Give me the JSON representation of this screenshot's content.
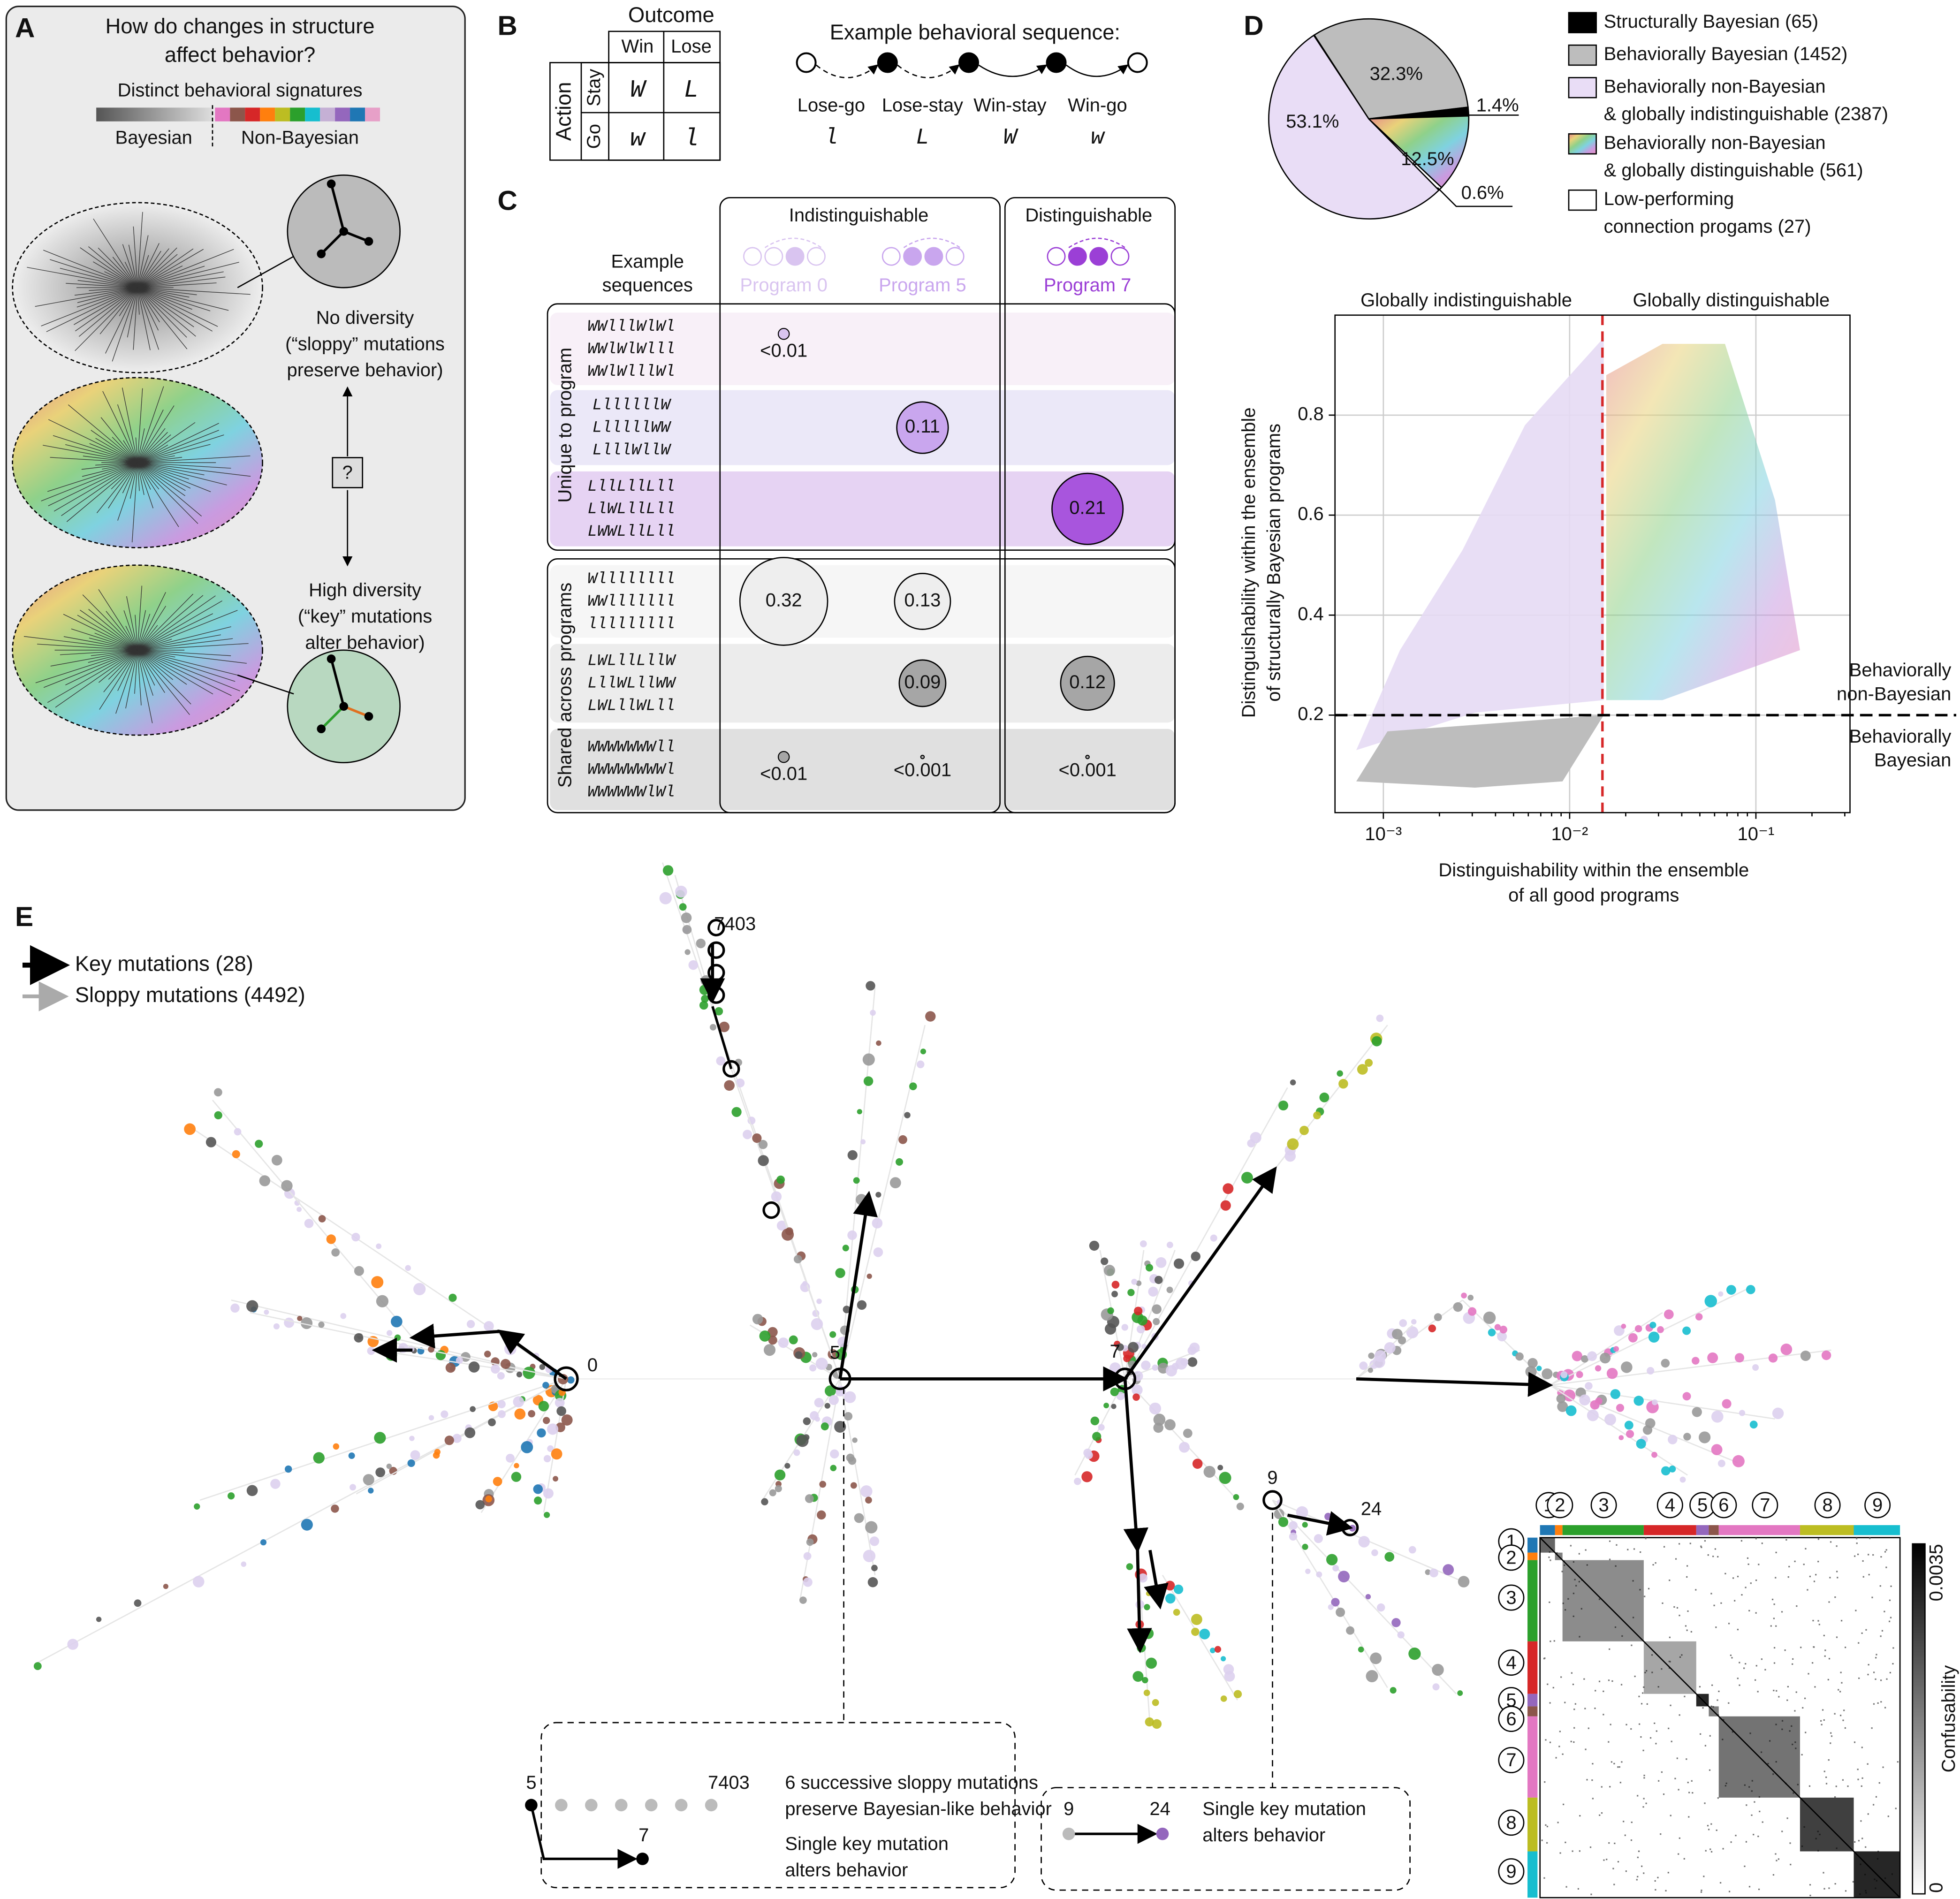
{
  "panel_a": {
    "label": "A",
    "title_lines": [
      "How do changes in structure",
      "affect behavior?"
    ],
    "signature_heading": "Distinct behavioral signatures",
    "bar_labels": [
      "Bayesian",
      "Non-Bayesian"
    ],
    "no_diversity": [
      "No diversity",
      "(“sloppy” mutations",
      "preserve behavior)"
    ],
    "question": "?",
    "high_diversity": [
      "High diversity",
      "(“key” mutations",
      "alter behavior)"
    ]
  },
  "panel_b": {
    "label": "B",
    "outcome": "Outcome",
    "action": "Action",
    "columns": [
      "Win",
      "Lose"
    ],
    "rows": [
      "Stay",
      "Go"
    ],
    "cells": [
      [
        "W",
        "L"
      ],
      [
        "w",
        "l"
      ]
    ],
    "sequence_title": "Example behavioral sequence:",
    "steps": [
      "Lose-go",
      "Lose-stay",
      "Win-stay",
      "Win-go"
    ],
    "step_symbols": [
      "l",
      "L",
      "W",
      "w"
    ]
  },
  "panel_c": {
    "label": "C",
    "groups": [
      "Indistinguishable",
      "Distinguishable"
    ],
    "heading": [
      "Example",
      "sequences"
    ],
    "programs": [
      "Program 0",
      "Program 5",
      "Program 7"
    ],
    "row_groups": [
      "Unique to program",
      "Shared across programs"
    ],
    "rows": [
      {
        "sequences": [
          "WWlllWlWl",
          "WWlWlWlll",
          "WWlWlllWl"
        ],
        "values": [
          0.005,
          null,
          null
        ],
        "value_labels": [
          "<0.01",
          null,
          null
        ]
      },
      {
        "sequences": [
          "LllllllW",
          "LlllllWW",
          "LlllWllW"
        ],
        "values": [
          null,
          0.11,
          null
        ],
        "value_labels": [
          null,
          "0.11",
          null
        ]
      },
      {
        "sequences": [
          "LllLllLll",
          "LlWLllLll",
          "LWWLllLll"
        ],
        "values": [
          null,
          null,
          0.21
        ],
        "value_labels": [
          null,
          null,
          "0.21"
        ]
      },
      {
        "sequences": [
          "Wllllllll",
          "WWlllllll",
          "lllllllll"
        ],
        "values": [
          0.32,
          0.13,
          null
        ],
        "value_labels": [
          "0.32",
          "0.13",
          null
        ]
      },
      {
        "sequences": [
          "LWLllLllW",
          "LllWLllWW",
          "LWLllWLll"
        ],
        "values": [
          null,
          0.09,
          0.12
        ],
        "value_labels": [
          null,
          "0.09",
          "0.12"
        ]
      },
      {
        "sequences": [
          "WWWWWWWll",
          "WWWWWWWWl",
          "WWWWWWlWl"
        ],
        "values": [
          0.005,
          0.0005,
          0.0005
        ],
        "value_labels": [
          "<0.01",
          "<0.001",
          "<0.001"
        ]
      }
    ]
  },
  "panel_d": {
    "label": "D",
    "pie": {
      "values": [
        32.3,
        1.4,
        12.5,
        0.6,
        53.1
      ],
      "value_labels": [
        "32.3%",
        "1.4%",
        "12.5%",
        "0.6%",
        "53.1%"
      ]
    },
    "legend": [
      [
        "Structurally Bayesian (65)"
      ],
      [
        "Behaviorally Bayesian (1452)"
      ],
      [
        "Behaviorally non-Bayesian",
        "& globally indistinguishable (2387)"
      ],
      [
        "Behaviorally non-Bayesian",
        "& globally distinguishable (561)"
      ],
      [
        "Low-performing",
        "connection progams (27)"
      ]
    ],
    "scatter": {
      "region_labels": [
        "Globally indistinguishable",
        "Globally distinguishable"
      ],
      "xlabel": [
        "Distinguishability within the ensemble",
        "of all good programs"
      ],
      "ylabel": [
        "Distinguishability within the ensemble",
        "of structurally Bayesian programs"
      ],
      "xscale": "log",
      "xlim": [
        0.00055,
        0.32
      ],
      "ylim": [
        0.005,
        1.0
      ],
      "xticks": [
        {
          "value": 0.001,
          "label": "10⁻³"
        },
        {
          "value": 0.01,
          "label": "10⁻²"
        },
        {
          "value": 0.1,
          "label": "10⁻¹"
        }
      ],
      "yticks": [
        0.2,
        0.4,
        0.6,
        0.8
      ],
      "grid": true,
      "x_threshold": 0.015,
      "y_threshold": 0.2,
      "threshold_labels": [
        [
          "Behaviorally",
          "non-Bayesian"
        ],
        [
          "Behaviorally",
          "Bayesian"
        ]
      ]
    }
  },
  "panel_e": {
    "label": "E",
    "legend": [
      "Key mutations (28)",
      "Sloppy mutations (4492)"
    ],
    "node_labels": [
      "0",
      "5",
      "7",
      "9",
      "24",
      "7403"
    ],
    "box1": {
      "start": "5",
      "end": "7403",
      "line1": [
        "6 successive sloppy mutations",
        "preserve Bayesian-like behavior"
      ],
      "key_end": "7",
      "line2": [
        "Single key mutation",
        "alters behavior"
      ]
    },
    "box2": {
      "start": "9",
      "end": "24",
      "lines": [
        "Single key mutation",
        "alters behavior"
      ]
    },
    "heatmap": {
      "clusters": [
        "1",
        "2",
        "3",
        "4",
        "5",
        "6",
        "7",
        "8",
        "9"
      ],
      "colorbar_ticks": [
        "0",
        "0.0035"
      ],
      "colorbar_label": "Confusability"
    }
  }
}
